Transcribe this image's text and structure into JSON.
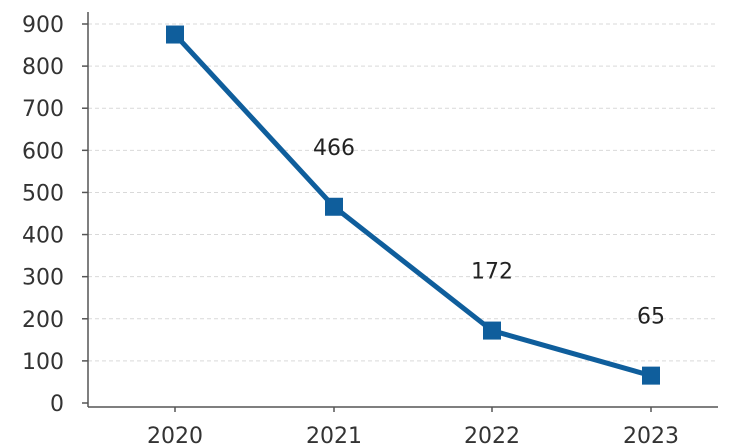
{
  "chart_data": {
    "type": "line",
    "title": "",
    "xlabel": "",
    "ylabel": "",
    "categories": [
      "2020",
      "2021",
      "2022",
      "2023"
    ],
    "series": [
      {
        "values": [
          875,
          466,
          172,
          65
        ],
        "color": "#0f5e9c",
        "marker": "square"
      }
    ],
    "data_labels": [
      "",
      "466",
      "172",
      "65"
    ],
    "ylim": [
      0,
      900
    ],
    "yticks": [
      "0",
      "100",
      "200",
      "300",
      "400",
      "500",
      "600",
      "700",
      "800",
      "900"
    ],
    "grid": true,
    "legend": "none"
  }
}
